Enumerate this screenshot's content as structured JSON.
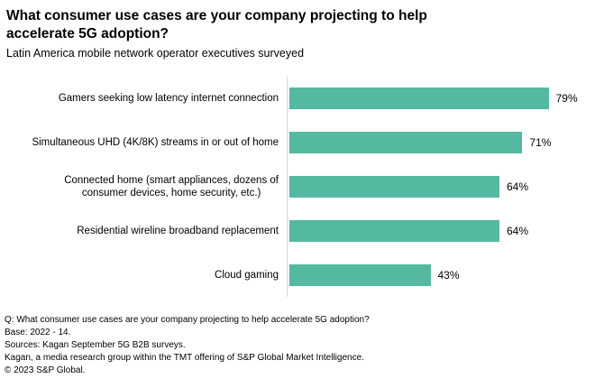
{
  "header": {
    "title": "What consumer use cases are your company projecting to help\naccelerate 5G adoption?",
    "subtitle": "Latin America mobile network operator executives surveyed"
  },
  "chart_data": {
    "type": "bar",
    "orientation": "horizontal",
    "title": "What consumer use cases are your company projecting to help accelerate 5G adoption?",
    "subtitle": "Latin America mobile network operator executives surveyed",
    "categories": [
      "Gamers seeking low latency internet connection",
      "Simultaneous UHD (4K/8K) streams in or out of home",
      "Connected home (smart appliances, dozens of\nconsumer devices, home security, etc.)",
      "Residential wireline broadband replacement",
      "Cloud gaming"
    ],
    "values": [
      79,
      71,
      64,
      64,
      43
    ],
    "value_labels": [
      "79%",
      "71%",
      "64%",
      "64%",
      "43%"
    ],
    "unit": "%",
    "xlim": [
      0,
      100
    ],
    "grid": false,
    "legend": false,
    "bar_color": "#55b8a1",
    "axis_line_color": "#d8d8d8"
  },
  "footer": {
    "lines": [
      "Q: What consumer use cases are your company projecting to help accelerate 5G adoption?",
      "Base: 2022 - 14.",
      "Sources: Kagan September 5G B2B surveys.",
      "Kagan, a media research group within the TMT offering of S&P Global Market Intelligence.",
      "© 2023 S&P Global."
    ]
  }
}
